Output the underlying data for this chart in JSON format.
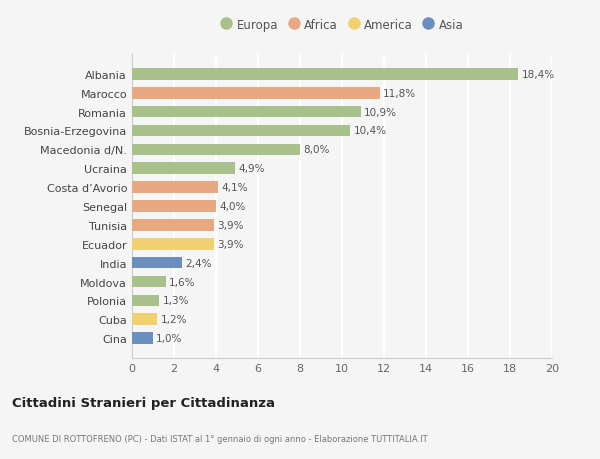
{
  "categories": [
    "Albania",
    "Marocco",
    "Romania",
    "Bosnia-Erzegovina",
    "Macedonia d/N.",
    "Ucraina",
    "Costa d’Avorio",
    "Senegal",
    "Tunisia",
    "Ecuador",
    "India",
    "Moldova",
    "Polonia",
    "Cuba",
    "Cina"
  ],
  "values": [
    18.4,
    11.8,
    10.9,
    10.4,
    8.0,
    4.9,
    4.1,
    4.0,
    3.9,
    3.9,
    2.4,
    1.6,
    1.3,
    1.2,
    1.0
  ],
  "labels": [
    "18,4%",
    "11,8%",
    "10,9%",
    "10,4%",
    "8,0%",
    "4,9%",
    "4,1%",
    "4,0%",
    "3,9%",
    "3,9%",
    "2,4%",
    "1,6%",
    "1,3%",
    "1,2%",
    "1,0%"
  ],
  "continents": [
    "Europa",
    "Africa",
    "Europa",
    "Europa",
    "Europa",
    "Europa",
    "Africa",
    "Africa",
    "Africa",
    "America",
    "Asia",
    "Europa",
    "Europa",
    "America",
    "Asia"
  ],
  "colors": {
    "Europa": "#a8c08a",
    "Africa": "#e8a882",
    "America": "#f0d070",
    "Asia": "#6a8fbf"
  },
  "legend_order": [
    "Europa",
    "Africa",
    "America",
    "Asia"
  ],
  "xlim": [
    0,
    20
  ],
  "xticks": [
    0,
    2,
    4,
    6,
    8,
    10,
    12,
    14,
    16,
    18,
    20
  ],
  "title": "Cittadini Stranieri per Cittadinanza",
  "subtitle": "COMUNE DI ROTTOFRENO (PC) - Dati ISTAT al 1° gennaio di ogni anno - Elaborazione TUTTITALIA.IT",
  "bg_color": "#f5f5f5",
  "bar_height": 0.62,
  "grid_color": "#ffffff",
  "spine_color": "#cccccc"
}
